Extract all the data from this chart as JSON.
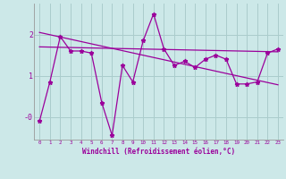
{
  "xlabel": "Windchill (Refroidissement éolien,°C)",
  "x": [
    0,
    1,
    2,
    3,
    4,
    5,
    6,
    7,
    8,
    9,
    10,
    11,
    12,
    13,
    14,
    15,
    16,
    17,
    18,
    19,
    20,
    21,
    22,
    23
  ],
  "series1": [
    -0.1,
    0.85,
    1.95,
    1.6,
    1.6,
    1.55,
    0.35,
    -0.45,
    1.25,
    0.85,
    1.85,
    2.5,
    1.65,
    1.25,
    1.35,
    1.2,
    1.4,
    1.5,
    1.4,
    0.8,
    0.8,
    0.85,
    1.55,
    1.65
  ],
  "series2_x": [
    0,
    23
  ],
  "series2": [
    1.7,
    1.58
  ],
  "series3_x": [
    0,
    23
  ],
  "series3": [
    2.05,
    0.78
  ],
  "line_color": "#9b009b",
  "bg_color": "#cce8e8",
  "grid_color": "#aacccc",
  "ylim": [
    -0.55,
    2.75
  ],
  "xlim": [
    -0.5,
    23.5
  ],
  "yticks": [
    0,
    1,
    2
  ],
  "ytick_labels": [
    "-0",
    "1",
    "2"
  ],
  "xticks": [
    0,
    1,
    2,
    3,
    4,
    5,
    6,
    7,
    8,
    9,
    10,
    11,
    12,
    13,
    14,
    15,
    16,
    17,
    18,
    19,
    20,
    21,
    22,
    23
  ]
}
